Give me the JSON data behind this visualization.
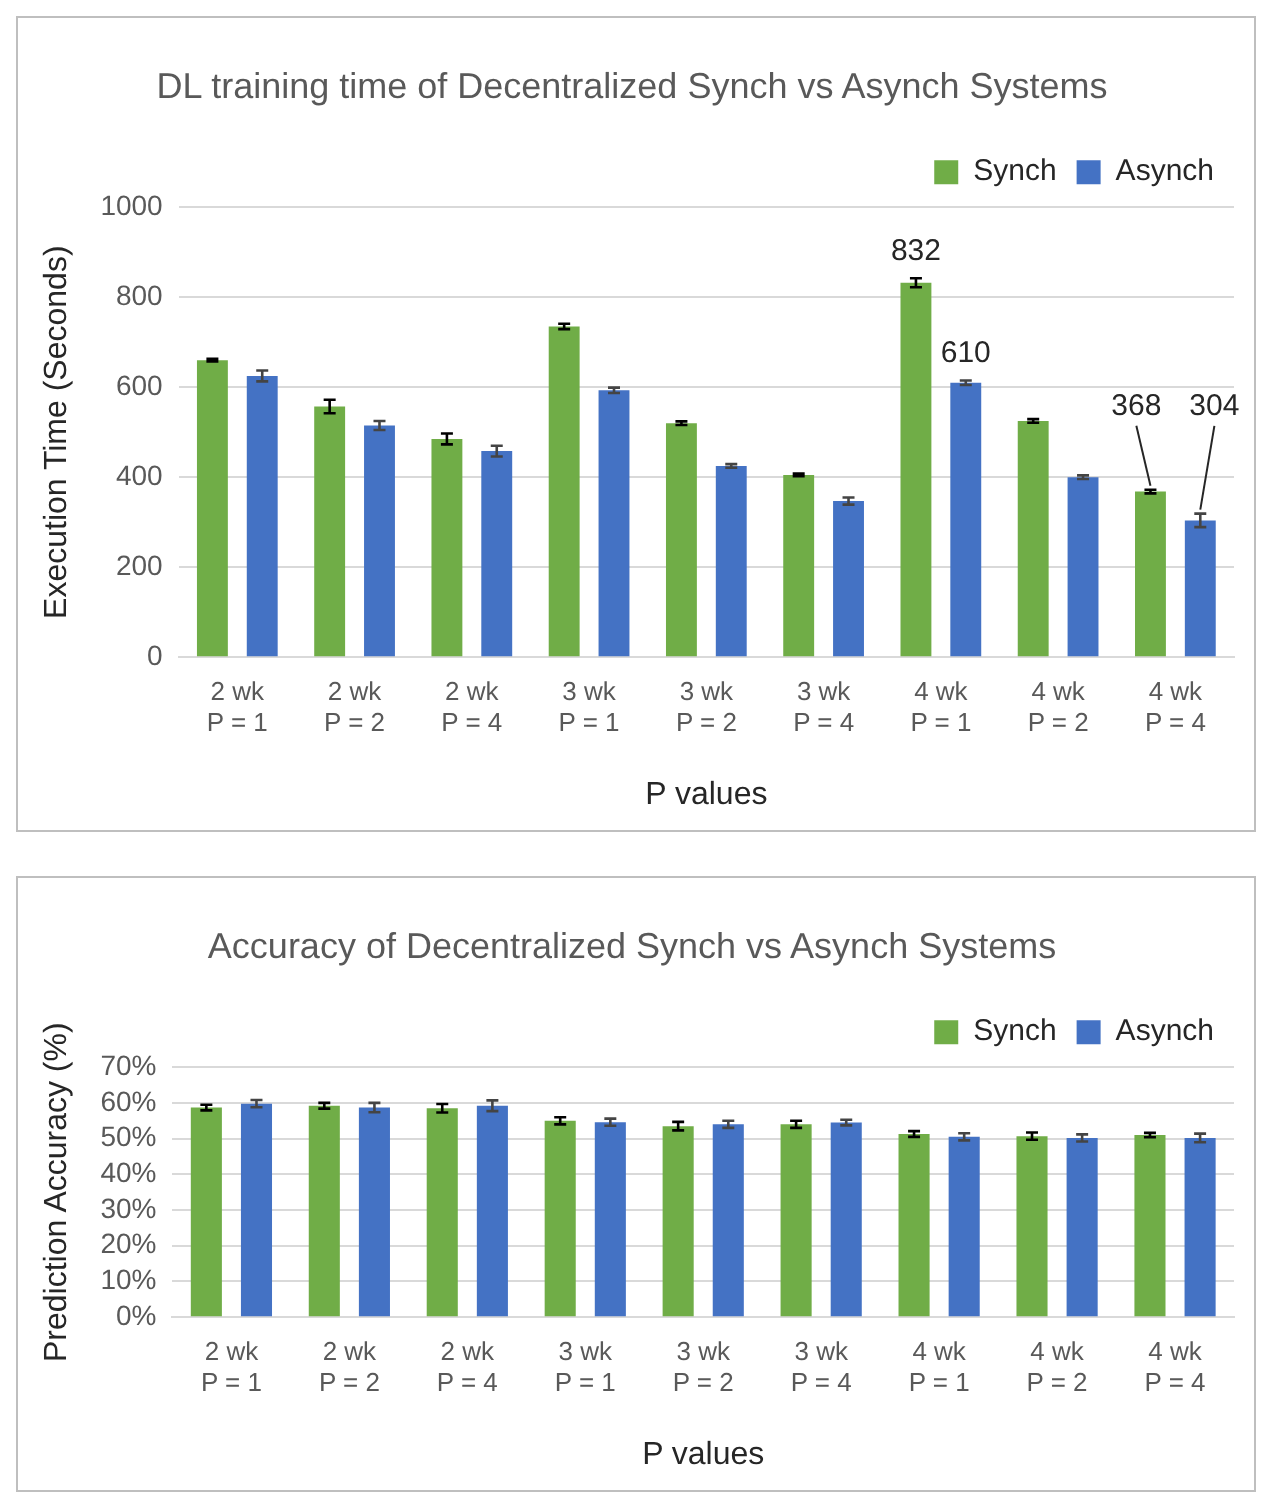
{
  "chart_data": [
    {
      "type": "bar",
      "title": "DL training time of Decentralized Synch vs Asynch Systems",
      "xlabel": "P values",
      "ylabel": "Execution Time (Seconds)",
      "categories": [
        "2 wk\nP = 1",
        "2 wk\nP = 2",
        "2 wk\nP = 4",
        "3 wk\nP = 1",
        "3 wk\nP = 2",
        "3 wk\nP = 4",
        "4 wk\nP = 1",
        "4 wk\nP = 2",
        "4 wk\nP = 4"
      ],
      "series": [
        {
          "name": "Synch",
          "color": "#70ad47",
          "values": [
            660,
            557,
            485,
            735,
            520,
            405,
            832,
            525,
            368
          ],
          "errors": [
            3,
            15,
            12,
            6,
            4,
            3,
            10,
            4,
            4
          ],
          "value_labels": [
            null,
            null,
            null,
            null,
            null,
            null,
            "832",
            null,
            "368"
          ]
        },
        {
          "name": "Asynch",
          "color": "#4472c4",
          "values": [
            625,
            515,
            458,
            593,
            425,
            347,
            610,
            400,
            304
          ],
          "errors": [
            12,
            10,
            12,
            6,
            4,
            8,
            5,
            4,
            15
          ],
          "value_labels": [
            null,
            null,
            null,
            null,
            null,
            null,
            "610",
            null,
            "304"
          ]
        }
      ],
      "ylim": [
        0,
        1000
      ],
      "yticks": [
        0,
        200,
        400,
        600,
        800,
        1000
      ],
      "grid": "y",
      "legend": "top right"
    },
    {
      "type": "bar",
      "title": "Accuracy of Decentralized Synch vs Asynch Systems",
      "xlabel": "P values",
      "ylabel": "Prediction Accuracy (%)",
      "categories": [
        "2 wk\nP = 1",
        "2 wk\nP = 2",
        "2 wk\nP = 4",
        "3 wk\nP = 1",
        "3 wk\nP = 2",
        "3 wk\nP = 4",
        "4 wk\nP = 1",
        "4 wk\nP = 2",
        "4 wk\nP = 4"
      ],
      "series": [
        {
          "name": "Synch",
          "color": "#70ad47",
          "values": [
            58.7,
            59.2,
            58.5,
            55,
            53.5,
            54,
            51.3,
            50.7,
            51
          ],
          "errors": [
            0.8,
            0.8,
            1.2,
            1,
            1.2,
            1,
            0.8,
            1,
            0.6
          ]
        },
        {
          "name": "Asynch",
          "color": "#4472c4",
          "values": [
            59.8,
            58.7,
            59.2,
            54.6,
            54,
            54.5,
            50.5,
            50.2,
            50.2
          ],
          "errors": [
            1,
            1.3,
            1.5,
            1,
            1,
            0.8,
            1,
            1,
            1.2
          ]
        }
      ],
      "ylim": [
        0,
        70
      ],
      "yticks": [
        {
          "value": 0,
          "label": "0%"
        },
        {
          "value": 10,
          "label": "10%"
        },
        {
          "value": 20,
          "label": "20%"
        },
        {
          "value": 30,
          "label": "30%"
        },
        {
          "value": 40,
          "label": "40%"
        },
        {
          "value": 50,
          "label": "50%"
        },
        {
          "value": 60,
          "label": "60%"
        },
        {
          "value": 70,
          "label": "70%"
        }
      ],
      "grid": "y",
      "legend": "top right"
    }
  ]
}
